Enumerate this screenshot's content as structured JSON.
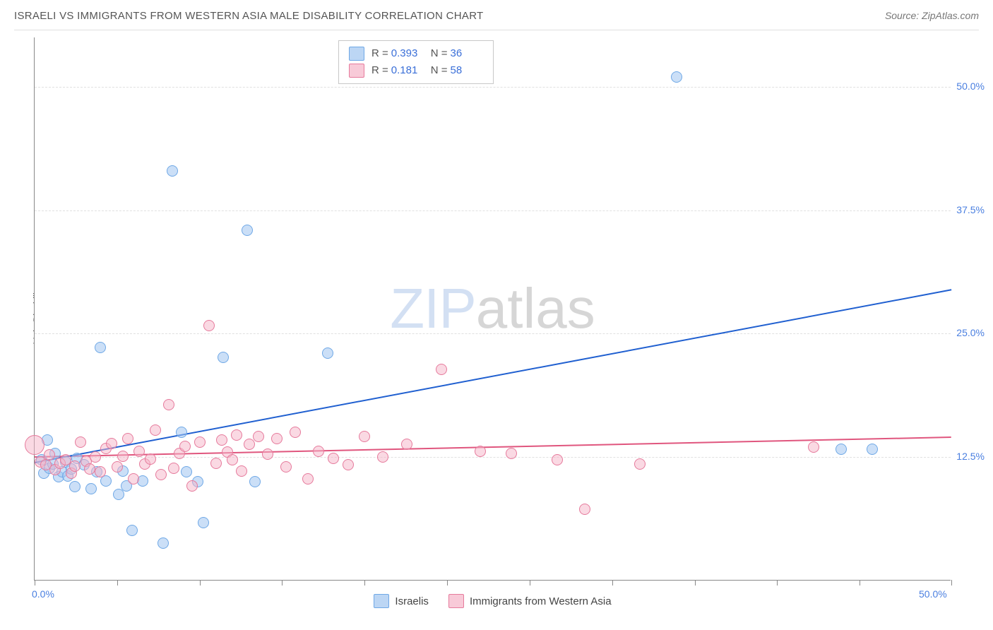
{
  "title": "ISRAELI VS IMMIGRANTS FROM WESTERN ASIA MALE DISABILITY CORRELATION CHART",
  "source": "Source: ZipAtlas.com",
  "y_axis_label": "Male Disability",
  "chart": {
    "type": "scatter",
    "xlim": [
      0,
      50
    ],
    "ylim": [
      0,
      55
    ],
    "x_ticks": [
      0,
      4.5,
      9.0,
      13.5,
      18.0,
      22.5,
      27.0,
      31.5,
      36.0,
      40.5,
      45.0,
      50.0
    ],
    "x_tick_labels_visible": {
      "0": "0.0%",
      "50": "50.0%"
    },
    "y_grid": [
      12.5,
      25.0,
      37.5,
      50.0
    ],
    "y_tick_labels": [
      "12.5%",
      "25.0%",
      "37.5%",
      "50.0%"
    ],
    "background_color": "#ffffff",
    "grid_color": "#e0e0e0",
    "axis_color": "#888888",
    "tick_label_color": "#4a7fe0",
    "marker_radius": 8,
    "marker_radius_large": 14,
    "watermark": {
      "prefix": "ZIP",
      "suffix": "atlas",
      "prefix_color": "rgba(130,165,220,0.35)",
      "suffix_color": "rgba(120,120,120,0.3)",
      "fontsize": 80
    }
  },
  "series": [
    {
      "name": "Israelis",
      "color_fill": "rgba(160,196,240,0.55)",
      "color_stroke": "#6fa8e6",
      "trend_color": "#1f5fd0",
      "trend": {
        "x0": 0,
        "y0": 12.0,
        "x1": 50,
        "y1": 29.5
      },
      "stats": {
        "R": "0.393",
        "N": "36"
      },
      "points": [
        {
          "x": 0.4,
          "y": 12.2
        },
        {
          "x": 0.5,
          "y": 10.9
        },
        {
          "x": 0.7,
          "y": 14.2
        },
        {
          "x": 0.8,
          "y": 11.4
        },
        {
          "x": 1.0,
          "y": 11.8
        },
        {
          "x": 1.3,
          "y": 10.5
        },
        {
          "x": 1.5,
          "y": 11.0
        },
        {
          "x": 1.7,
          "y": 12.0
        },
        {
          "x": 1.8,
          "y": 10.6
        },
        {
          "x": 2.0,
          "y": 11.3
        },
        {
          "x": 2.2,
          "y": 9.5
        },
        {
          "x": 2.3,
          "y": 12.4
        },
        {
          "x": 2.7,
          "y": 11.7
        },
        {
          "x": 3.1,
          "y": 9.3
        },
        {
          "x": 3.4,
          "y": 11.0
        },
        {
          "x": 3.6,
          "y": 23.6
        },
        {
          "x": 3.9,
          "y": 10.1
        },
        {
          "x": 4.6,
          "y": 8.7
        },
        {
          "x": 4.8,
          "y": 11.1
        },
        {
          "x": 5.0,
          "y": 9.6
        },
        {
          "x": 5.3,
          "y": 5.1
        },
        {
          "x": 5.9,
          "y": 10.1
        },
        {
          "x": 7.0,
          "y": 3.8
        },
        {
          "x": 7.5,
          "y": 41.5
        },
        {
          "x": 8.0,
          "y": 15.0
        },
        {
          "x": 8.3,
          "y": 11.0
        },
        {
          "x": 8.9,
          "y": 10.0
        },
        {
          "x": 9.2,
          "y": 5.9
        },
        {
          "x": 10.3,
          "y": 22.6
        },
        {
          "x": 11.6,
          "y": 35.5
        },
        {
          "x": 12.0,
          "y": 10.0
        },
        {
          "x": 16.0,
          "y": 23.0
        },
        {
          "x": 35.0,
          "y": 51.0
        },
        {
          "x": 44.0,
          "y": 13.3
        },
        {
          "x": 45.7,
          "y": 13.3
        },
        {
          "x": 1.1,
          "y": 12.9
        }
      ]
    },
    {
      "name": "Immigrants from Western Asia",
      "color_fill": "rgba(245,180,200,0.5)",
      "color_stroke": "#e67a9c",
      "trend_color": "#e0567e",
      "trend": {
        "x0": 0,
        "y0": 12.6,
        "x1": 50,
        "y1": 14.6
      },
      "stats": {
        "R": "0.181",
        "N": "58"
      },
      "points": [
        {
          "x": 0.0,
          "y": 13.7,
          "r": 14
        },
        {
          "x": 0.3,
          "y": 12.0
        },
        {
          "x": 0.6,
          "y": 11.7
        },
        {
          "x": 0.8,
          "y": 12.7
        },
        {
          "x": 1.1,
          "y": 11.2
        },
        {
          "x": 1.4,
          "y": 11.9
        },
        {
          "x": 1.7,
          "y": 12.2
        },
        {
          "x": 2.0,
          "y": 10.9
        },
        {
          "x": 2.2,
          "y": 11.6
        },
        {
          "x": 2.5,
          "y": 14.0
        },
        {
          "x": 2.8,
          "y": 12.1
        },
        {
          "x": 3.0,
          "y": 11.3
        },
        {
          "x": 3.3,
          "y": 12.5
        },
        {
          "x": 3.6,
          "y": 11.0
        },
        {
          "x": 3.9,
          "y": 13.4
        },
        {
          "x": 4.2,
          "y": 13.9
        },
        {
          "x": 4.5,
          "y": 11.5
        },
        {
          "x": 4.8,
          "y": 12.6
        },
        {
          "x": 5.1,
          "y": 14.4
        },
        {
          "x": 5.4,
          "y": 10.3
        },
        {
          "x": 5.7,
          "y": 13.1
        },
        {
          "x": 6.0,
          "y": 11.8
        },
        {
          "x": 6.3,
          "y": 12.3
        },
        {
          "x": 6.6,
          "y": 15.2
        },
        {
          "x": 6.9,
          "y": 10.7
        },
        {
          "x": 7.3,
          "y": 17.8
        },
        {
          "x": 7.6,
          "y": 11.4
        },
        {
          "x": 7.9,
          "y": 12.9
        },
        {
          "x": 8.2,
          "y": 13.6
        },
        {
          "x": 8.6,
          "y": 9.6
        },
        {
          "x": 9.0,
          "y": 14.0
        },
        {
          "x": 9.5,
          "y": 25.8
        },
        {
          "x": 9.9,
          "y": 11.9
        },
        {
          "x": 10.2,
          "y": 14.2
        },
        {
          "x": 10.5,
          "y": 13.0
        },
        {
          "x": 10.8,
          "y": 12.2
        },
        {
          "x": 11.3,
          "y": 11.1
        },
        {
          "x": 11.7,
          "y": 13.8
        },
        {
          "x": 12.2,
          "y": 14.6
        },
        {
          "x": 12.7,
          "y": 12.8
        },
        {
          "x": 13.2,
          "y": 14.4
        },
        {
          "x": 13.7,
          "y": 11.5
        },
        {
          "x": 14.2,
          "y": 15.0
        },
        {
          "x": 14.9,
          "y": 10.3
        },
        {
          "x": 15.5,
          "y": 13.1
        },
        {
          "x": 16.3,
          "y": 12.4
        },
        {
          "x": 17.1,
          "y": 11.7
        },
        {
          "x": 18.0,
          "y": 14.6
        },
        {
          "x": 19.0,
          "y": 12.5
        },
        {
          "x": 20.3,
          "y": 13.8
        },
        {
          "x": 22.2,
          "y": 21.4
        },
        {
          "x": 24.3,
          "y": 13.1
        },
        {
          "x": 26.0,
          "y": 12.9
        },
        {
          "x": 28.5,
          "y": 12.2
        },
        {
          "x": 30.0,
          "y": 7.2
        },
        {
          "x": 33.0,
          "y": 11.8
        },
        {
          "x": 42.5,
          "y": 13.5
        },
        {
          "x": 11.0,
          "y": 14.7
        }
      ]
    }
  ],
  "stats_legend": {
    "R_label": "R =",
    "N_label": "N ="
  }
}
